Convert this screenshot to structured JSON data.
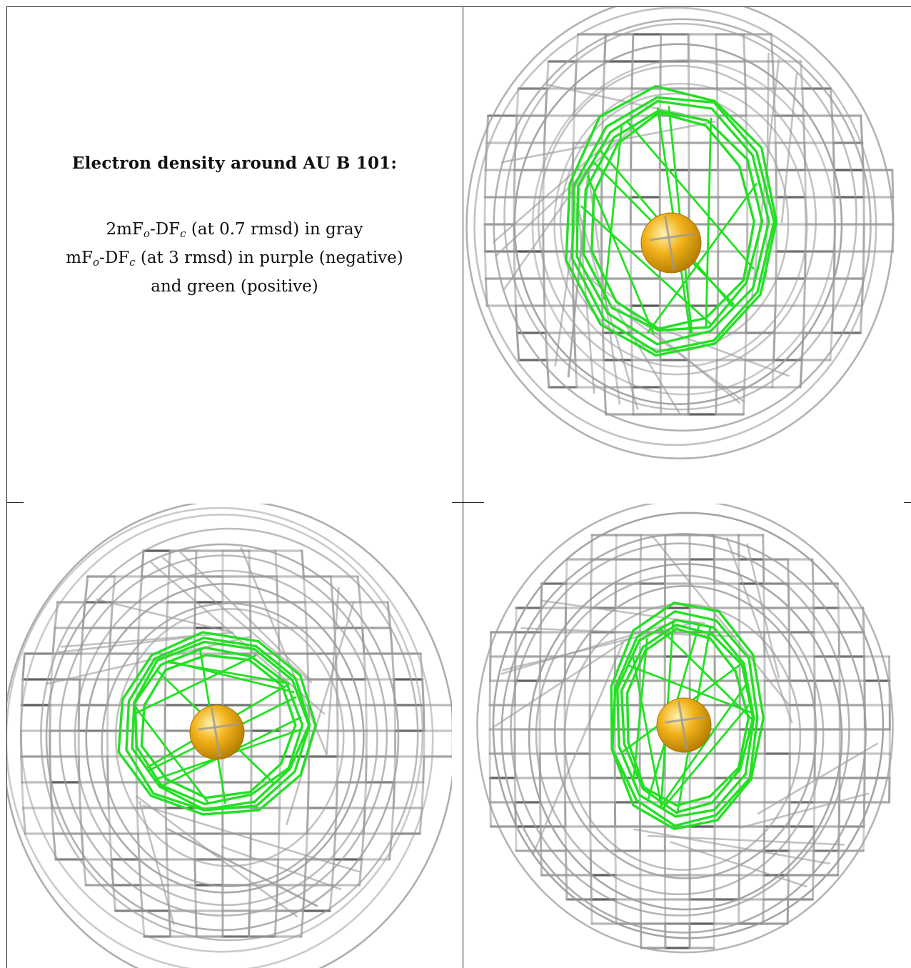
{
  "caption": {
    "title": "Electron density around AU B 101:",
    "line1": {
      "a": "2mF",
      "sub1": "o",
      "b": "-DF",
      "sub2": "c",
      "c": " (at 0.7 rmsd) in gray"
    },
    "line2": {
      "a": "mF",
      "sub1": "o",
      "b": "-DF",
      "sub2": "c",
      "c": " (at 3 rmsd) in purple (negative)"
    },
    "line3": "and green (positive)"
  },
  "colors": {
    "gray_mesh": "#9a9a9a",
    "gray_mesh_dark": "#555555",
    "green_mesh": "#22e022",
    "atom_gold": "#f2b21b",
    "border": "#222222"
  },
  "panels": [
    {
      "name": "view-top-right",
      "atom": "AU B 101"
    },
    {
      "name": "view-bottom-left",
      "atom": "AU B 101"
    },
    {
      "name": "view-bottom-right",
      "atom": "AU B 101"
    }
  ]
}
